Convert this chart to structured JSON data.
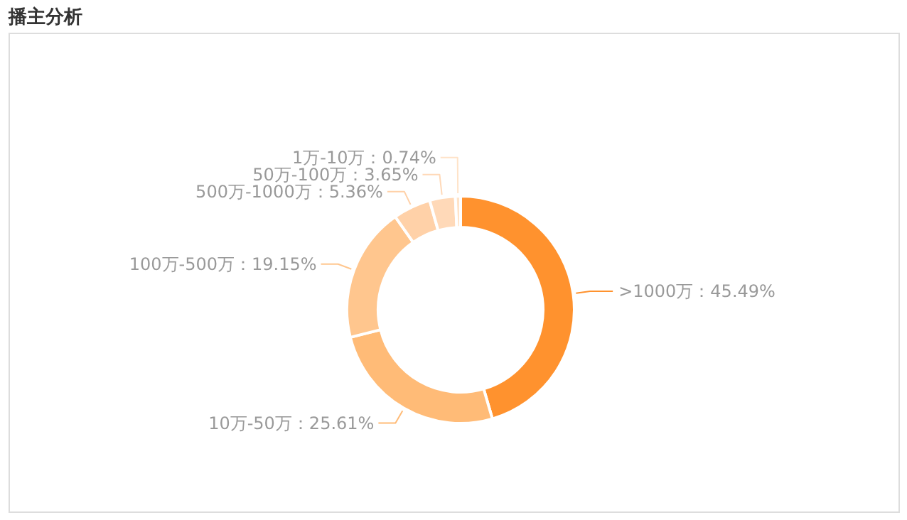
{
  "chart_data": {
    "type": "donut",
    "title": "播主分析",
    "categories": [
      ">1000万",
      "10万-50万",
      "100万-500万",
      "500万-1000万",
      "50万-100万",
      "1万-10万"
    ],
    "values": [
      45.49,
      25.61,
      19.15,
      5.36,
      3.65,
      0.74
    ],
    "colors": [
      "#ff922e",
      "#ffbb77",
      "#ffc68e",
      "#ffd1a8",
      "#ffd9b8",
      "#ffe3c8"
    ],
    "value_labels": [
      "45.49%",
      "25.61%",
      "19.15%",
      "5.36%",
      "3.65%",
      "0.74%"
    ]
  }
}
